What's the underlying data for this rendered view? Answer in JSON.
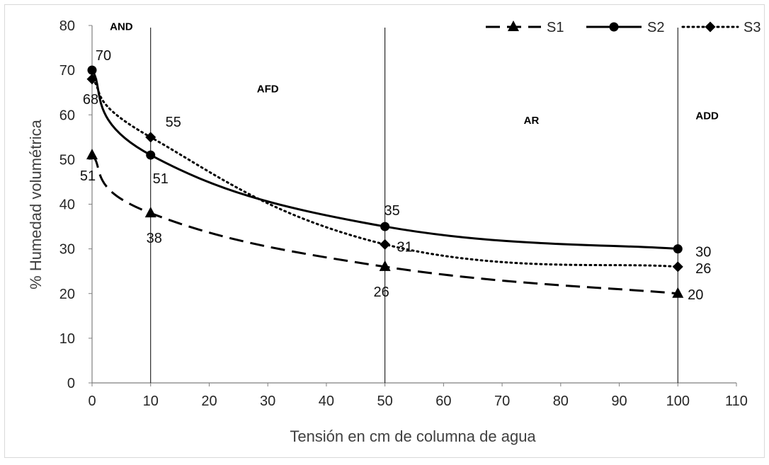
{
  "chart_data": {
    "type": "line",
    "xlabel": "Tensión en cm de columna de agua",
    "ylabel": "% Humedad volumétrica",
    "xlim": [
      0,
      110
    ],
    "ylim": [
      0,
      80
    ],
    "xticks": [
      "0",
      "10",
      "20",
      "30",
      "40",
      "50",
      "60",
      "70",
      "80",
      "90",
      "100",
      "110"
    ],
    "yticks": [
      "0",
      "10",
      "20",
      "30",
      "40",
      "50",
      "60",
      "70",
      "80"
    ],
    "x": [
      0,
      10,
      50,
      100
    ],
    "series": [
      {
        "name": "S1",
        "values": [
          51,
          38,
          26,
          20
        ],
        "labels": [
          "51",
          "38",
          "26",
          "20"
        ],
        "line_style": "dashed",
        "marker": "triangle",
        "color": "#000000"
      },
      {
        "name": "S2",
        "values": [
          70,
          51,
          35,
          30
        ],
        "labels": [
          "70",
          "51",
          "35",
          "30"
        ],
        "line_style": "solid",
        "marker": "circle",
        "color": "#000000"
      },
      {
        "name": "S3",
        "values": [
          68,
          55,
          31,
          26
        ],
        "labels": [
          "68",
          "55",
          "31",
          "26"
        ],
        "line_style": "dotted",
        "marker": "diamond",
        "color": "#000000"
      }
    ],
    "reference_lines_x": [
      10,
      50,
      100
    ],
    "regions": [
      {
        "label": "AND",
        "x": 5,
        "y": 79
      },
      {
        "label": "AFD",
        "x": 30,
        "y": 65
      },
      {
        "label": "AR",
        "x": 75,
        "y": 58
      },
      {
        "label": "ADD",
        "x": 105,
        "y": 59
      }
    ],
    "legend_position": "top-right",
    "grid": false
  }
}
